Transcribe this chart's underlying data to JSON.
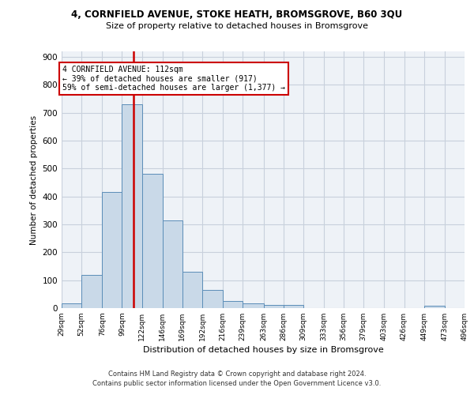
{
  "title1": "4, CORNFIELD AVENUE, STOKE HEATH, BROMSGROVE, B60 3QU",
  "title2": "Size of property relative to detached houses in Bromsgrove",
  "xlabel": "Distribution of detached houses by size in Bromsgrove",
  "ylabel": "Number of detached properties",
  "annotation_line1": "4 CORNFIELD AVENUE: 112sqm",
  "annotation_line2": "← 39% of detached houses are smaller (917)",
  "annotation_line3": "59% of semi-detached houses are larger (1,377) →",
  "property_size": 112,
  "bar_color": "#c9d9e8",
  "bar_edge_color": "#5b8db8",
  "vline_color": "#cc0000",
  "background_color": "#eef2f7",
  "grid_color": "#c8d0dc",
  "bin_edges": [
    29,
    52,
    76,
    99,
    122,
    146,
    169,
    192,
    216,
    239,
    263,
    286,
    309,
    333,
    356,
    379,
    403,
    426,
    449,
    473,
    496
  ],
  "bin_heights": [
    17,
    120,
    415,
    730,
    480,
    315,
    130,
    65,
    25,
    18,
    10,
    10,
    0,
    0,
    0,
    0,
    0,
    0,
    8,
    0,
    8
  ],
  "tick_labels": [
    "29sqm",
    "52sqm",
    "76sqm",
    "99sqm",
    "122sqm",
    "146sqm",
    "169sqm",
    "192sqm",
    "216sqm",
    "239sqm",
    "263sqm",
    "286sqm",
    "309sqm",
    "333sqm",
    "356sqm",
    "379sqm",
    "403sqm",
    "426sqm",
    "449sqm",
    "473sqm",
    "496sqm"
  ],
  "yticks": [
    0,
    100,
    200,
    300,
    400,
    500,
    600,
    700,
    800,
    900
  ],
  "ylim": [
    0,
    920
  ],
  "footer1": "Contains HM Land Registry data © Crown copyright and database right 2024.",
  "footer2": "Contains public sector information licensed under the Open Government Licence v3.0."
}
